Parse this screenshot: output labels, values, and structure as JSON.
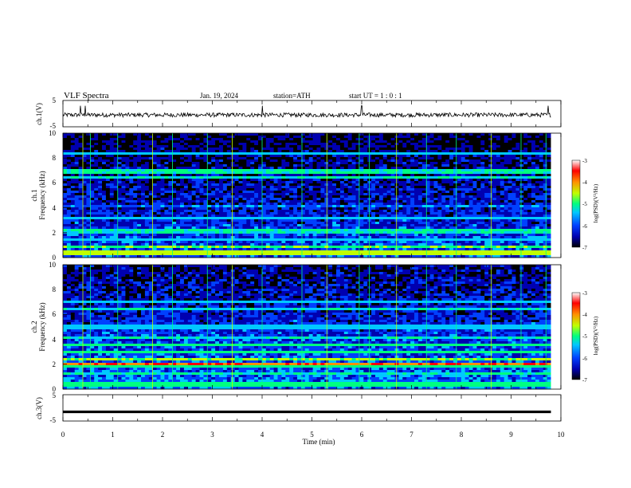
{
  "header": {
    "title": "VLF  Spectra",
    "date": "Jan. 19, 2024",
    "station": "station=ATH",
    "start_ut": "start  UT  =   1 : 0  : 1"
  },
  "colors": {
    "palette": [
      "#000000",
      "#0000b0",
      "#0040ff",
      "#00c8ff",
      "#00ff80",
      "#c0ff00",
      "#ff9000",
      "#ff0000",
      "#ffffff"
    ],
    "trace": "#000000",
    "frame": "#000000"
  },
  "chart_data": [
    {
      "type": "line",
      "panel": "ch1-waveform",
      "ylabel": "ch.1(V)",
      "ytick_labels": [
        "5",
        "-5"
      ],
      "ylim": [
        -5,
        5
      ],
      "xlim": [
        0,
        10
      ],
      "data_end_min": 9.8,
      "mean": -0.5,
      "noise_amplitude": 0.8,
      "spikes_min": [
        0.35,
        0.45,
        4.0,
        6.0,
        9.75
      ]
    },
    {
      "type": "heatmap",
      "panel": "ch1-spectrogram",
      "ylabel": "ch.1\nFrequency  (kHz)",
      "ytick_labels": [
        "10",
        "8",
        "6",
        "4",
        "2",
        "0"
      ],
      "ylim": [
        0,
        10
      ],
      "xlim": [
        0,
        10
      ],
      "data_end_min": 9.8,
      "colorbar_label": "log(PSD)(V²/Hz)",
      "colorbar_ticks": [
        "-3",
        "-4",
        "-5",
        "-6",
        "-7"
      ],
      "zlim": [
        -7,
        -3
      ],
      "bands": [
        {
          "freq_khz": 0.3,
          "level": -4.4
        },
        {
          "freq_khz": 0.55,
          "level": -4.6
        },
        {
          "freq_khz": 0.9,
          "level": -4.8
        },
        {
          "freq_khz": 1.5,
          "level": -5.6
        },
        {
          "freq_khz": 2.0,
          "level": -5.3
        },
        {
          "freq_khz": 2.2,
          "level": -5.2
        },
        {
          "freq_khz": 3.2,
          "level": -5.5
        },
        {
          "freq_khz": 4.2,
          "level": -5.8
        },
        {
          "freq_khz": 6.4,
          "level": -5.3
        },
        {
          "freq_khz": 6.9,
          "level": -5.2
        },
        {
          "freq_khz": 8.3,
          "level": -5.4
        }
      ],
      "impulse_lines_min": [
        0.4,
        0.55,
        1.1,
        1.8,
        2.2,
        2.9,
        3.4,
        4.0,
        4.8,
        5.3,
        5.95,
        6.15,
        6.7,
        7.3,
        7.9,
        8.6,
        9.2,
        9.7
      ]
    },
    {
      "type": "heatmap",
      "panel": "ch2-spectrogram",
      "ylabel": "ch.2\nFrequency  (kHz)",
      "ytick_labels": [
        "10",
        "8",
        "6",
        "4",
        "2",
        "0"
      ],
      "ylim": [
        0,
        10
      ],
      "xlim": [
        0,
        10
      ],
      "data_end_min": 9.8,
      "colorbar_label": "log(PSD)(V²/Hz)",
      "colorbar_ticks": [
        "-3",
        "-4",
        "-5",
        "-6",
        "-7"
      ],
      "zlim": [
        -7,
        -3
      ],
      "bands": [
        {
          "freq_khz": 0.4,
          "level": -5.0
        },
        {
          "freq_khz": 1.2,
          "level": -5.2
        },
        {
          "freq_khz": 1.8,
          "level": -4.9
        },
        {
          "freq_khz": 2.0,
          "level": -3.8
        },
        {
          "freq_khz": 2.4,
          "level": -4.7
        },
        {
          "freq_khz": 3.0,
          "level": -5.0
        },
        {
          "freq_khz": 3.5,
          "level": -5.0
        },
        {
          "freq_khz": 4.1,
          "level": -5.3
        },
        {
          "freq_khz": 5.0,
          "level": -5.5
        },
        {
          "freq_khz": 6.5,
          "level": -5.3
        },
        {
          "freq_khz": 7.0,
          "level": -5.6
        }
      ],
      "impulse_lines_min": [
        0.4,
        0.55,
        1.1,
        1.8,
        2.2,
        2.9,
        3.4,
        4.0,
        4.8,
        5.3,
        5.95,
        6.15,
        6.7,
        7.3,
        7.9,
        8.6,
        9.2,
        9.7
      ]
    },
    {
      "type": "line",
      "panel": "ch3-waveform",
      "ylabel": "ch.3(V)",
      "ytick_labels": [
        "5",
        "-5"
      ],
      "ylim": [
        -5,
        5
      ],
      "xlim": [
        0,
        10
      ],
      "data_end_min": 9.8,
      "mean": -1.5,
      "noise_amplitude": 0.0,
      "xlabel": "Time  (min)",
      "xtick_labels": [
        "0",
        "1",
        "2",
        "3",
        "4",
        "5",
        "6",
        "7",
        "8",
        "9",
        "10"
      ]
    }
  ]
}
